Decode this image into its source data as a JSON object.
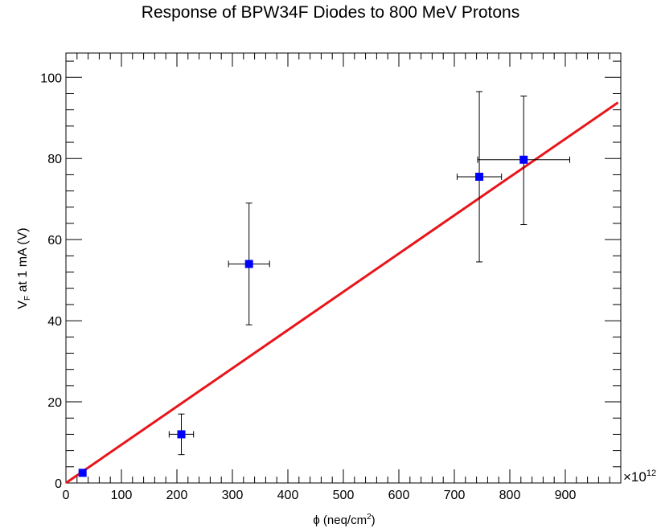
{
  "chart_data": {
    "type": "scatter",
    "title": "Response of BPW34F Diodes to 800 MeV Protons",
    "xlabel": {
      "base": "ϕ (neq/cm",
      "sup": "2",
      "tail": ")"
    },
    "ylabel": {
      "base": "V",
      "sub": "F",
      "tail": " at 1 mA (V)"
    },
    "x_multiplier": {
      "prefix": "×10",
      "exponent": "12"
    },
    "xlim": [
      0,
      1000
    ],
    "ylim": [
      0,
      106
    ],
    "x_ticks": [
      0,
      100,
      200,
      300,
      400,
      500,
      600,
      700,
      800,
      900
    ],
    "x_tick_labels": [
      "0",
      "100",
      "200",
      "300",
      "400",
      "500",
      "600",
      "700",
      "800",
      "900"
    ],
    "y_ticks": [
      0,
      20,
      40,
      60,
      80,
      100
    ],
    "y_tick_labels": [
      "0",
      "20",
      "40",
      "60",
      "80",
      "100"
    ],
    "points": [
      {
        "x": 30,
        "y": 2.5,
        "xerr": 5,
        "yerr_low": 0,
        "yerr_high": 0
      },
      {
        "x": 208,
        "y": 12,
        "xerr": 22,
        "yerr_low": 5,
        "yerr_high": 5
      },
      {
        "x": 330,
        "y": 54,
        "xerr": 37,
        "yerr_low": 15,
        "yerr_high": 15
      },
      {
        "x": 745,
        "y": 75.5,
        "xerr": 40,
        "yerr_low": 21,
        "yerr_high": 21
      },
      {
        "x": 825,
        "y": 79.7,
        "xerr": 83,
        "yerr_low": 16,
        "yerr_high": 15.7
      }
    ],
    "fit": {
      "x_start": 0,
      "y_start": 0,
      "x_end": 995,
      "y_end": 93.8
    },
    "colors": {
      "marker": "#0000ff",
      "fit": "#e8151b",
      "errorbar": "#000000",
      "axis": "#000000"
    },
    "grid": false,
    "legend": "none"
  }
}
